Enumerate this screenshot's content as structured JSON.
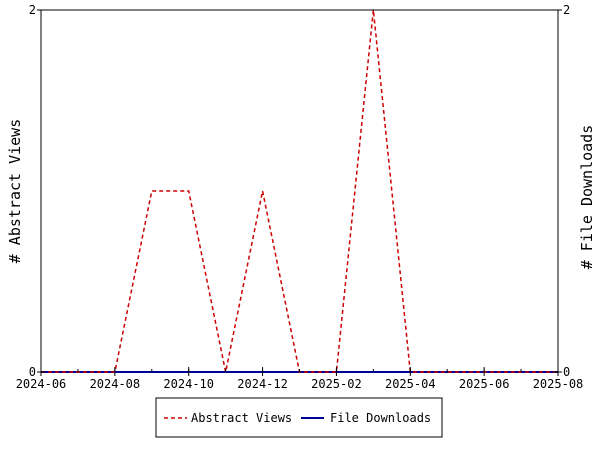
{
  "chart_data": {
    "type": "line",
    "xlabel": "",
    "ylabel_left": "# Abstract Views",
    "ylabel_right": "# File Downloads",
    "x_ticks": [
      "2024-06",
      "2024-08",
      "2024-10",
      "2024-12",
      "2025-02",
      "2025-04",
      "2025-06",
      "2025-08"
    ],
    "xlim": [
      "2024-06",
      "2025-08"
    ],
    "ylim_left": [
      0,
      2
    ],
    "ylim_right": [
      0,
      2
    ],
    "y_ticks_left": [
      0,
      2
    ],
    "y_ticks_right": [
      0,
      2
    ],
    "grid": false,
    "legend_position": "bottom",
    "series": [
      {
        "name": "Abstract Views",
        "axis": "left",
        "color": "#cc0000",
        "dash": "dashed",
        "points": [
          {
            "x": "2024-06",
            "y": 0
          },
          {
            "x": "2024-07",
            "y": 0
          },
          {
            "x": "2024-08",
            "y": 0
          },
          {
            "x": "2024-09",
            "y": 1
          },
          {
            "x": "2024-10",
            "y": 1
          },
          {
            "x": "2024-11",
            "y": 0
          },
          {
            "x": "2024-12",
            "y": 1
          },
          {
            "x": "2025-01",
            "y": 0
          },
          {
            "x": "2025-02",
            "y": 0
          },
          {
            "x": "2025-03",
            "y": 2
          },
          {
            "x": "2025-04",
            "y": 0
          },
          {
            "x": "2025-05",
            "y": 0
          },
          {
            "x": "2025-06",
            "y": 0
          },
          {
            "x": "2025-07",
            "y": 0
          },
          {
            "x": "2025-08",
            "y": 0
          }
        ]
      },
      {
        "name": "File Downloads",
        "axis": "right",
        "color": "#000099",
        "dash": "solid",
        "points": [
          {
            "x": "2024-06",
            "y": 0
          },
          {
            "x": "2024-07",
            "y": 0
          },
          {
            "x": "2024-08",
            "y": 0
          },
          {
            "x": "2024-09",
            "y": 0
          },
          {
            "x": "2024-10",
            "y": 0
          },
          {
            "x": "2024-11",
            "y": 0
          },
          {
            "x": "2024-12",
            "y": 0
          },
          {
            "x": "2025-01",
            "y": 0
          },
          {
            "x": "2025-02",
            "y": 0
          },
          {
            "x": "2025-03",
            "y": 0
          },
          {
            "x": "2025-04",
            "y": 0
          },
          {
            "x": "2025-05",
            "y": 0
          },
          {
            "x": "2025-06",
            "y": 0
          },
          {
            "x": "2025-07",
            "y": 0
          },
          {
            "x": "2025-08",
            "y": 0
          }
        ]
      }
    ]
  }
}
